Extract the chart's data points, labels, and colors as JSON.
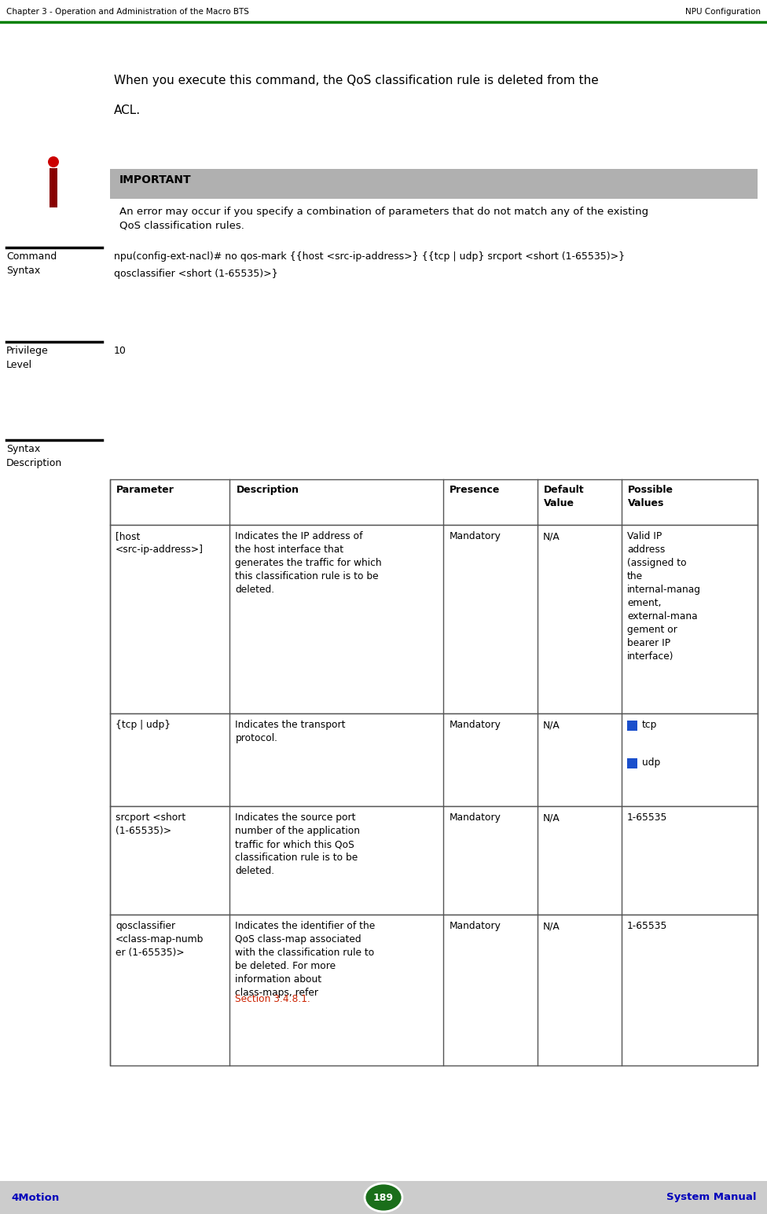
{
  "page_width": 9.76,
  "page_height": 15.45,
  "bg_color": "#ffffff",
  "header_left": "Chapter 3 - Operation and Administration of the Macro BTS",
  "header_right": "NPU Configuration",
  "header_line_color": "#008000",
  "footer_left": "4Motion",
  "footer_center": "189",
  "footer_right": "System Manual",
  "footer_bg": "#cccccc",
  "footer_text_color": "#0000bb",
  "footer_circle_color": "#1a6e1a",
  "intro_text_line1": "When you execute this command, the QoS classification rule is deleted from the",
  "intro_text_line2": "ACL.",
  "important_bg": "#b0b0b0",
  "important_title": "IMPORTANT",
  "important_body": "An error may occur if you specify a combination of parameters that do not match any of the existing\nQoS classification rules.",
  "label_command_syntax": "Command\nSyntax",
  "command_syntax_line1": "npu(config-ext-nacl)# no qos-mark {{host <src-ip-address>} {{tcp | udp} srcport <short (1-65535)>}",
  "command_syntax_line2": "qosclassifier <short (1-65535)>}",
  "label_privilege_level": "Privilege\nLevel",
  "privilege_value": "10",
  "label_syntax_desc": "Syntax\nDescription",
  "table_header": [
    "Parameter",
    "Description",
    "Presence",
    "Default\nValue",
    "Possible\nValues"
  ],
  "table_rows": [
    {
      "param": "[host\n<src-ip-address>]",
      "desc": "Indicates the IP address of\nthe host interface that\ngenerates the traffic for which\nthis classification rule is to be\ndeleted.",
      "presence": "Mandatory",
      "default": "N/A",
      "possible": "Valid IP\naddress\n(assigned to\nthe\ninternal-manag\nement,\nexternal-mana\ngement or\nbearer IP\ninterface)"
    },
    {
      "param": "{tcp | udp}",
      "desc": "Indicates the transport\nprotocol.",
      "presence": "Mandatory",
      "default": "N/A",
      "possible": "tcp\nudp",
      "bullets": true
    },
    {
      "param": "srcport <short\n(1-65535)>",
      "desc": "Indicates the source port\nnumber of the application\ntraffic for which this QoS\nclassification rule is to be\ndeleted.",
      "presence": "Mandatory",
      "default": "N/A",
      "possible": "1-65535"
    },
    {
      "param": "qosclassifier\n<class-map-numb\ner (1-65535)>",
      "desc": "Indicates the identifier of the\nQoS class-map associated\nwith the classification rule to\nbe deleted. For more\ninformation about\nclass-maps, refer\n",
      "desc_link": "Section 3.4.8.1.",
      "presence": "Mandatory",
      "default": "N/A",
      "possible": "1-65535",
      "section_link": "Section 3.4.8.1."
    }
  ],
  "section_link_color": "#cc2200",
  "table_border_color": "#555555",
  "label_separator_color": "#000000",
  "icon_red_top": "#cc0000",
  "icon_dark_bar": "#880000"
}
